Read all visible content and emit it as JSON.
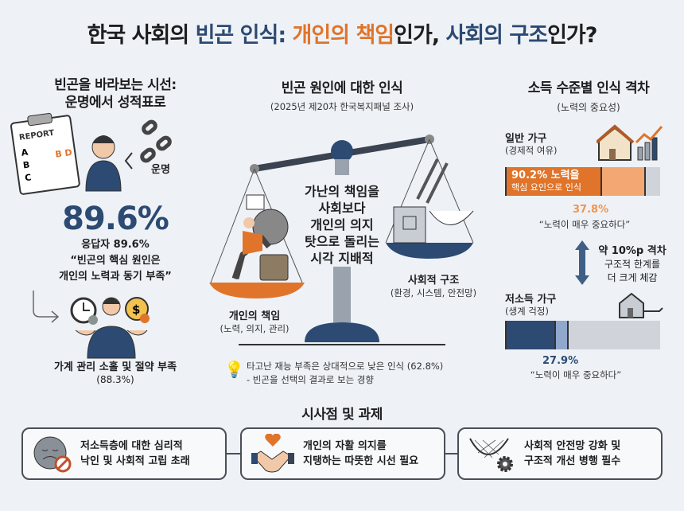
{
  "title": {
    "part1": "한국 사회의 ",
    "part2": "빈곤 인식: ",
    "part3": "개인의 책임",
    "part4": "인가, ",
    "part5": "사회의 구조",
    "part6": "인가?"
  },
  "colors": {
    "navy": "#2c4a72",
    "orange": "#e0742a",
    "light_orange": "#f3a873",
    "gray": "#d0d4da",
    "light_blue": "#8fa8cc"
  },
  "left": {
    "heading1": "빈곤을 바라보는 시선:",
    "heading2": "운명에서 성적표로",
    "report_label": "REPORT",
    "fate_label": "운명",
    "big_stat": "89.6%",
    "stat_line": "응답자 89.6%",
    "quote1": "“빈곤의 핵심 원인은",
    "quote2": "개인의 노력과 동기 부족”",
    "sub_label": "가계 관리 소홀 및 절약 부족",
    "sub_value": "(88.3%)"
  },
  "middle": {
    "heading": "빈곤 원인에 대한 인식",
    "subtitle": "(2025년 제20차 한국복지패널 조사)",
    "center_lines": [
      "가난의 책임을",
      "사회보다",
      "개인의 의지",
      "탓으로 돌리는",
      "시각 지배적"
    ],
    "left_pan_label": "개인의 책임",
    "left_pan_sub": "(노력, 의지, 관리)",
    "right_pan_label": "사회적 구조",
    "right_pan_sub": "(환경, 시스템, 안전망)",
    "note1": "타고난 재능 부족은 상대적으로 낮은 인식 (62.8%)",
    "note2": "- 빈곤을 선택의 결과로 보는 경향"
  },
  "right": {
    "heading": "소득 수준별 인식 격차",
    "subtitle": "(노력의 중요성)",
    "general": {
      "label": "일반 가구",
      "sub": "(경제적 여유)",
      "effort_pct": 90.2,
      "bar_text1": "90.2% 노력을",
      "bar_text2": "핵심 요인으로 인식",
      "very_pct": 37.8,
      "very_label": "37.8%",
      "quote": "“노력이 매우 중요하다”"
    },
    "gap": {
      "line1": "약 10%p 격차",
      "line2": "구조적 한계를",
      "line3": "더 크게 체감"
    },
    "low": {
      "label": "저소득 가구",
      "sub": "(생계 걱정)",
      "very_pct": 27.9,
      "very_label": "27.9%",
      "quote": "“노력이 매우 중요하다”"
    }
  },
  "bottom": {
    "heading": "시사점 및 과제",
    "cards": [
      {
        "icon": "sad-face-icon",
        "line1": "저소득층에 대한 심리적",
        "line2": "낙인 및 사회적 고립 초래"
      },
      {
        "icon": "handshake-heart-icon",
        "line1": "개인의 자활 의지를",
        "line2": "지탱하는 따뜻한 시선 필요"
      },
      {
        "icon": "safety-net-gear-icon",
        "line1": "사회적 안전망 강화 및",
        "line2": "구조적 개선 병행 필수"
      }
    ]
  }
}
